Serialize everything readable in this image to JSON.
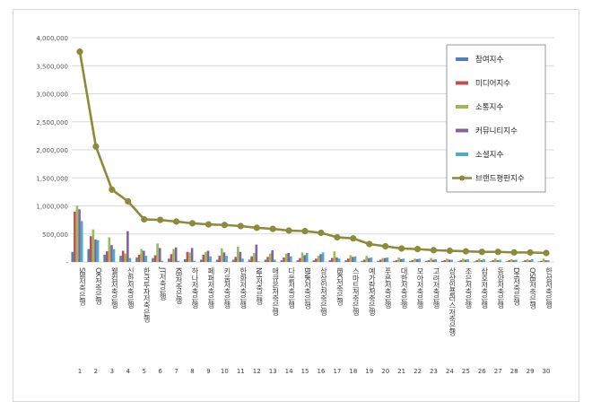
{
  "chart_data": {
    "type": "bar",
    "title": "",
    "xlabel": "",
    "ylabel": "",
    "ylim": [
      0,
      4000000
    ],
    "y_ticks": [
      "-",
      "500,000",
      "1,000,000",
      "1,500,000",
      "2,000,000",
      "2,500,000",
      "3,000,000",
      "3,500,000",
      "4,000,000"
    ],
    "grid": true,
    "legend_position": "right",
    "ranks": [
      "1",
      "2",
      "3",
      "4",
      "5",
      "6",
      "7",
      "8",
      "9",
      "10",
      "11",
      "12",
      "13",
      "14",
      "15",
      "16",
      "17",
      "18",
      "19",
      "20",
      "21",
      "22",
      "23",
      "24",
      "25",
      "26",
      "27",
      "28",
      "29",
      "30"
    ],
    "categories": [
      "SBI저축은행",
      "OK저축은행",
      "웰컴저축은행",
      "신한저축은행",
      "한국투자저축은행",
      "JT저축은행",
      "KB저축은행",
      "하나저축은행",
      "페퍼저축은행",
      "키움저축은행",
      "한화저축은행",
      "NH저축은행",
      "애큐온저축은행",
      "다올저축은행",
      "BNK저축은행",
      "상상인저축은행",
      "IBK저축은행",
      "스마트저축은행",
      "예가람저축은행",
      "푸른저축은행",
      "대한저축은행",
      "모아저축은행",
      "고려저축은행",
      "상상인플러스저축은행",
      "조은저축은행",
      "삼호저축은행",
      "동양저축은행",
      "DH저축은행",
      "OSB저축은행",
      "한성저축은행"
    ],
    "series": [
      {
        "name": "참여지수",
        "color": "#4f81bd",
        "values": [
          180000,
          230000,
          130000,
          110000,
          80000,
          70000,
          60000,
          50000,
          40000,
          40000,
          40000,
          40000,
          40000,
          30000,
          30000,
          30000,
          30000,
          30000,
          20000,
          20000,
          20000,
          20000,
          20000,
          20000,
          10000,
          10000,
          10000,
          10000,
          10000,
          10000
        ]
      },
      {
        "name": "미디어지수",
        "color": "#c0504d",
        "values": [
          900000,
          460000,
          190000,
          200000,
          130000,
          120000,
          140000,
          180000,
          130000,
          110000,
          90000,
          100000,
          90000,
          80000,
          70000,
          60000,
          70000,
          60000,
          40000,
          40000,
          30000,
          30000,
          30000,
          30000,
          30000,
          30000,
          30000,
          30000,
          30000,
          20000
        ]
      },
      {
        "name": "소통지수",
        "color": "#9bbb59",
        "values": [
          1000000,
          580000,
          440000,
          150000,
          230000,
          330000,
          230000,
          170000,
          180000,
          240000,
          270000,
          160000,
          150000,
          150000,
          170000,
          110000,
          190000,
          120000,
          110000,
          70000,
          80000,
          60000,
          70000,
          60000,
          60000,
          60000,
          60000,
          50000,
          50000,
          60000
        ]
      },
      {
        "name": "커뮤니티지수",
        "color": "#8064a2",
        "values": [
          940000,
          400000,
          300000,
          550000,
          200000,
          250000,
          260000,
          250000,
          200000,
          170000,
          180000,
          310000,
          210000,
          160000,
          120000,
          140000,
          80000,
          90000,
          70000,
          70000,
          50000,
          50000,
          40000,
          40000,
          40000,
          30000,
          30000,
          30000,
          30000,
          30000
        ]
      },
      {
        "name": "소셜지수",
        "color": "#4bacc6",
        "values": [
          730000,
          390000,
          230000,
          70000,
          110000,
          20000,
          20000,
          20000,
          100000,
          110000,
          60000,
          10000,
          40000,
          100000,
          160000,
          170000,
          60000,
          100000,
          80000,
          80000,
          60000,
          60000,
          50000,
          40000,
          50000,
          50000,
          40000,
          40000,
          50000,
          30000
        ]
      }
    ],
    "line_series": {
      "name": "브랜드평판지수",
      "color": "#8b8b3a",
      "values": [
        3750000,
        2060000,
        1290000,
        1080000,
        760000,
        750000,
        720000,
        690000,
        670000,
        660000,
        640000,
        610000,
        590000,
        560000,
        550000,
        520000,
        440000,
        420000,
        320000,
        280000,
        240000,
        230000,
        210000,
        200000,
        190000,
        180000,
        180000,
        170000,
        170000,
        160000
      ]
    }
  }
}
